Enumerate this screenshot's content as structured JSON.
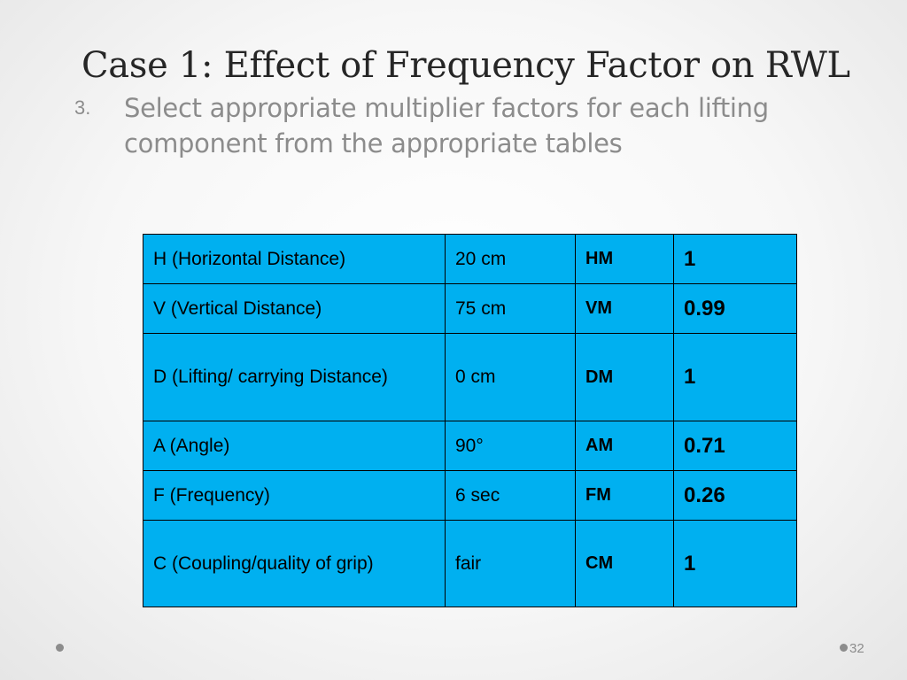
{
  "slide": {
    "title": "Case 1: Effect of Frequency Factor on RWL",
    "step": {
      "number": "3.",
      "text": "Select appropriate multiplier factors for each lifting component from the appropriate tables"
    },
    "page_number": "32"
  },
  "table": {
    "background_color": "#00b0f0",
    "rows": [
      {
        "label": "H (Horizontal Distance)",
        "value": "20 cm",
        "code": "HM",
        "multiplier": "1"
      },
      {
        "label": "V (Vertical Distance)",
        "value": "75 cm",
        "code": "VM",
        "multiplier": "0.99"
      },
      {
        "label": "D (Lifting/ carrying Distance)",
        "value": "0 cm",
        "code": "DM",
        "multiplier": "1"
      },
      {
        "label": "A (Angle)",
        "value": "90°",
        "code": "AM",
        "multiplier": "0.71"
      },
      {
        "label": "F (Frequency)",
        "value": "6 sec",
        "code": "FM",
        "multiplier": "0.26"
      },
      {
        "label": "C (Coupling/quality of grip)",
        "value": "fair",
        "code": "CM",
        "multiplier": "1"
      }
    ]
  }
}
